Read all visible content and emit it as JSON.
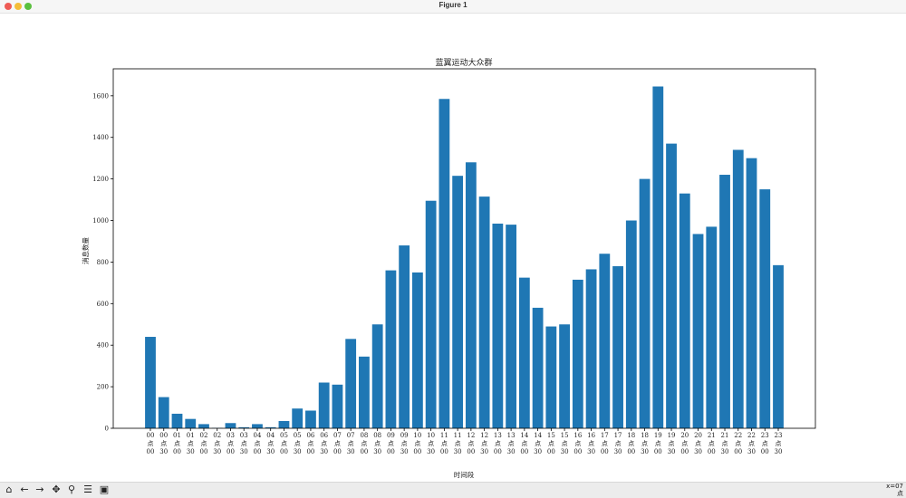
{
  "window": {
    "title": "Figure 1"
  },
  "toolbar": {
    "buttons": [
      {
        "name": "home-icon",
        "glyph": "⌂"
      },
      {
        "name": "back-arrow-icon",
        "glyph": "←"
      },
      {
        "name": "forward-arrow-icon",
        "glyph": "→"
      },
      {
        "name": "pan-icon",
        "glyph": "✥"
      },
      {
        "name": "zoom-icon",
        "glyph": "⚲"
      },
      {
        "name": "configure-subplots-icon",
        "glyph": "☰"
      },
      {
        "name": "save-icon",
        "glyph": "▣"
      }
    ],
    "coord_line1": "x=07",
    "coord_line2": "点"
  },
  "chart_data": {
    "type": "bar",
    "title": "蓝翼运动大众群",
    "xlabel": "时间段",
    "ylabel": "消息数量",
    "ylim": [
      0,
      1730
    ],
    "yticks": [
      0,
      200,
      400,
      600,
      800,
      1000,
      1200,
      1400,
      1600
    ],
    "bar_color": "#1f77b4",
    "categories": [
      [
        "00",
        "点",
        "00"
      ],
      [
        "00",
        "点",
        "30"
      ],
      [
        "01",
        "点",
        "00"
      ],
      [
        "01",
        "点",
        "30"
      ],
      [
        "02",
        "点",
        "00"
      ],
      [
        "02",
        "点",
        "30"
      ],
      [
        "03",
        "点",
        "00"
      ],
      [
        "03",
        "点",
        "30"
      ],
      [
        "04",
        "点",
        "00"
      ],
      [
        "04",
        "点",
        "30"
      ],
      [
        "05",
        "点",
        "00"
      ],
      [
        "05",
        "点",
        "30"
      ],
      [
        "06",
        "点",
        "00"
      ],
      [
        "06",
        "点",
        "30"
      ],
      [
        "07",
        "点",
        "00"
      ],
      [
        "07",
        "点",
        "30"
      ],
      [
        "08",
        "点",
        "00"
      ],
      [
        "08",
        "点",
        "30"
      ],
      [
        "09",
        "点",
        "00"
      ],
      [
        "09",
        "点",
        "30"
      ],
      [
        "10",
        "点",
        "00"
      ],
      [
        "10",
        "点",
        "30"
      ],
      [
        "11",
        "点",
        "00"
      ],
      [
        "11",
        "点",
        "30"
      ],
      [
        "12",
        "点",
        "00"
      ],
      [
        "12",
        "点",
        "30"
      ],
      [
        "13",
        "点",
        "00"
      ],
      [
        "13",
        "点",
        "30"
      ],
      [
        "14",
        "点",
        "00"
      ],
      [
        "14",
        "点",
        "30"
      ],
      [
        "15",
        "点",
        "00"
      ],
      [
        "15",
        "点",
        "30"
      ],
      [
        "16",
        "点",
        "00"
      ],
      [
        "16",
        "点",
        "30"
      ],
      [
        "17",
        "点",
        "00"
      ],
      [
        "17",
        "点",
        "30"
      ],
      [
        "18",
        "点",
        "00"
      ],
      [
        "18",
        "点",
        "30"
      ],
      [
        "19",
        "点",
        "00"
      ],
      [
        "19",
        "点",
        "30"
      ],
      [
        "20",
        "点",
        "00"
      ],
      [
        "20",
        "点",
        "30"
      ],
      [
        "21",
        "点",
        "00"
      ],
      [
        "21",
        "点",
        "30"
      ],
      [
        "22",
        "点",
        "00"
      ],
      [
        "22",
        "点",
        "30"
      ],
      [
        "23",
        "点",
        "00"
      ],
      [
        "23",
        "点",
        "30"
      ]
    ],
    "values": [
      440,
      150,
      70,
      45,
      20,
      2,
      25,
      5,
      20,
      5,
      35,
      95,
      85,
      220,
      210,
      430,
      345,
      500,
      760,
      880,
      750,
      1095,
      1585,
      1215,
      1280,
      1115,
      985,
      980,
      725,
      580,
      490,
      500,
      715,
      765,
      840,
      780,
      1000,
      1200,
      1645,
      1370,
      1130,
      935,
      970,
      1220,
      1340,
      1300,
      1150,
      785
    ]
  }
}
